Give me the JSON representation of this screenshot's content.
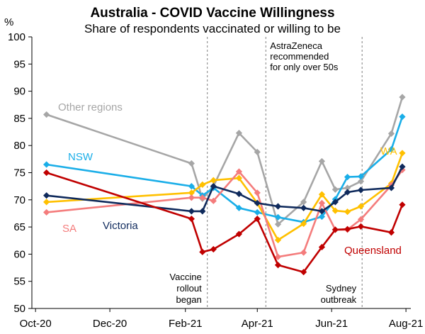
{
  "chart_data": {
    "type": "line",
    "title": "Australia - COVID Vaccine Willingness",
    "subtitle": "Share of respondents vaccinated or willing to be",
    "ylabel": "%",
    "ylim": [
      50,
      100
    ],
    "yticks": [
      50,
      55,
      60,
      65,
      70,
      75,
      80,
      85,
      90,
      95,
      100
    ],
    "xlim_days": [
      -3,
      308
    ],
    "xticks": [
      {
        "label": "Oct-20",
        "day": 0
      },
      {
        "label": "Dec-20",
        "day": 61
      },
      {
        "label": "Feb-21",
        "day": 123
      },
      {
        "label": "Apr-21",
        "day": 182
      },
      {
        "label": "Jun-21",
        "day": 243
      },
      {
        "label": "Aug-21",
        "day": 304
      }
    ],
    "events": [
      {
        "label_lines": [
          "Vaccine",
          "rollout",
          "began"
        ],
        "day": 141,
        "label_side": "bottom"
      },
      {
        "label_lines": [
          "AstraZeneca",
          "recommended",
          "for only over 50s"
        ],
        "day": 189,
        "label_side": "top"
      },
      {
        "label_lines": [
          "Sydney",
          "outbreak"
        ],
        "day": 268,
        "label_side": "bottom"
      }
    ],
    "series": [
      {
        "name": "Other regions",
        "color": "#a6a6a6",
        "x": [
          9,
          128,
          137,
          146,
          167,
          182,
          199,
          220,
          235,
          246,
          256,
          267,
          292,
          301
        ],
        "y": [
          85.7,
          76.7,
          70.2,
          72.5,
          82.3,
          78.8,
          65.5,
          69.6,
          77.1,
          71.9,
          72.2,
          73.4,
          82.2,
          88.9
        ]
      },
      {
        "name": "NSW",
        "color": "#1aaee8",
        "x": [
          9,
          128,
          137,
          146,
          167,
          182,
          199,
          220,
          235,
          246,
          256,
          267,
          292,
          301
        ],
        "y": [
          76.5,
          72.5,
          70.8,
          72.2,
          68.5,
          67.7,
          66.8,
          65.9,
          66.9,
          70.1,
          74.2,
          74.3,
          79.3,
          85.3
        ]
      },
      {
        "name": "WA",
        "color": "#ffc000",
        "x": [
          9,
          128,
          137,
          146,
          167,
          182,
          199,
          220,
          235,
          246,
          256,
          267,
          292,
          301
        ],
        "y": [
          69.6,
          71.3,
          72.8,
          73.6,
          74.0,
          69.4,
          62.6,
          65.6,
          71.0,
          68.0,
          67.8,
          68.8,
          73.0,
          78.6
        ]
      },
      {
        "name": "SA",
        "color": "#f47c7c",
        "x": [
          9,
          128,
          137,
          146,
          167,
          182,
          199,
          220,
          235,
          246,
          256,
          267,
          292,
          301
        ],
        "y": [
          67.7,
          70.4,
          70.4,
          69.8,
          75.2,
          71.3,
          59.5,
          60.3,
          69.4,
          64.5,
          64.5,
          66.4,
          72.7,
          75.5
        ]
      },
      {
        "name": "Victoria",
        "color": "#0f2a5c",
        "x": [
          9,
          128,
          137,
          146,
          167,
          182,
          199,
          220,
          235,
          246,
          256,
          267,
          292,
          301
        ],
        "y": [
          70.8,
          67.9,
          67.9,
          72.5,
          71.1,
          69.4,
          68.8,
          68.5,
          67.9,
          69.6,
          71.4,
          71.8,
          72.2,
          76.1
        ]
      },
      {
        "name": "Queensland",
        "color": "#c00000",
        "x": [
          9,
          128,
          137,
          146,
          167,
          182,
          199,
          220,
          235,
          246,
          256,
          267,
          292,
          301
        ],
        "y": [
          75.0,
          66.5,
          60.4,
          60.9,
          63.7,
          66.5,
          58.0,
          56.7,
          61.3,
          64.5,
          64.6,
          65.1,
          64.0,
          69.1
        ]
      }
    ],
    "series_labels": [
      {
        "text": "Other regions",
        "color": "#a6a6a6"
      },
      {
        "text": "NSW",
        "color": "#1aaee8"
      },
      {
        "text": "WA",
        "color": "#ffc000"
      },
      {
        "text": "SA",
        "color": "#f47c7c"
      },
      {
        "text": "Victoria",
        "color": "#0f2a5c"
      },
      {
        "text": "Queensland",
        "color": "#c00000"
      }
    ]
  }
}
